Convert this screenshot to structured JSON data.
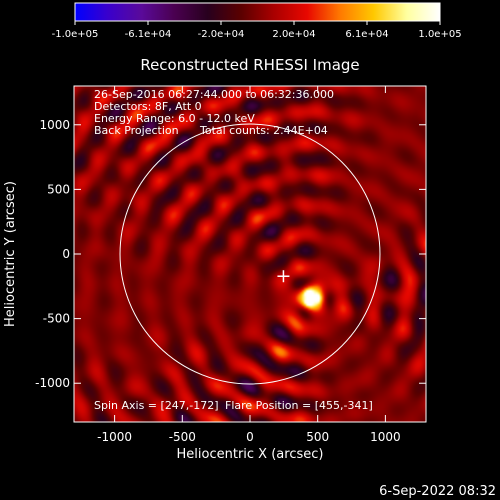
{
  "colorbar": {
    "tick_labels": [
      "-1.0e+05",
      "-6.1e+04",
      "-2.0e+04",
      "2.0e+04",
      "6.1e+04",
      "1.0e+05"
    ],
    "colors": [
      "#0000ff",
      "#3a00cc",
      "#5a0a9a",
      "#4a0050",
      "#28001e",
      "#5a0000",
      "#aa0000",
      "#e80800",
      "#ff7a00",
      "#ffc800",
      "#ffffa0",
      "#ffffff"
    ]
  },
  "chart_data": {
    "type": "heatmap",
    "title": "Reconstructed RHESSI Image",
    "xlabel": "Heliocentric X (arcsec)",
    "ylabel": "Heliocentric Y (arcsec)",
    "xlim": [
      -1300,
      1300
    ],
    "ylim": [
      -1300,
      1300
    ],
    "x_ticks": [
      "-1000",
      "-500",
      "0",
      "500",
      "1000"
    ],
    "y_ticks": [
      "1000",
      "500",
      "0",
      "-500",
      "-1000"
    ],
    "value_range": [
      -100000,
      100000
    ],
    "info_lines": [
      "26-Sep-2016 06:27:44.000 to 06:32:36.000",
      "Detectors: 8F, Att 0",
      "Energy Range: 6.0 - 12.0 keV"
    ],
    "method": "Back Projection",
    "total_counts": "Total counts: 2.44E+04",
    "spin_axis": "Spin Axis = [247,-172]",
    "flare_position": "Flare Position = [455,-341]",
    "spin_axis_xy": [
      247,
      -172
    ],
    "flare_xy": [
      455,
      -341
    ],
    "solar_limb_radius": 960
  },
  "footer": {
    "timestamp": "6-Sep-2022 08:32"
  }
}
